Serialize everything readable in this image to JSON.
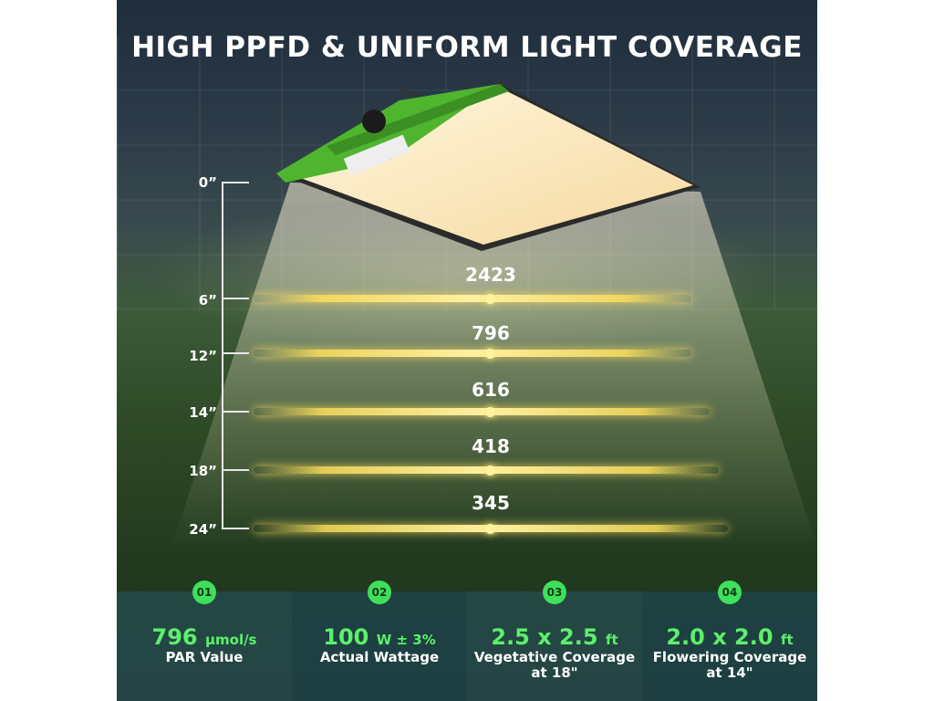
{
  "title": "HIGH PPFD & UNIFORM LIGHT COVERAGE",
  "colors": {
    "accent": "#5cf06a",
    "badge": "#3ee05a",
    "glow": "#fff0a0"
  },
  "heights": [
    "0”",
    "6”",
    "12”",
    "14”",
    "18”",
    "24”"
  ],
  "ppfd_values": [
    "2423",
    "796",
    "616",
    "418",
    "345"
  ],
  "stats": [
    {
      "num": "01",
      "value": "796",
      "unit": "μmol/s",
      "caption": "PAR Value"
    },
    {
      "num": "02",
      "value": "100",
      "unit": "W ± 3%",
      "caption": "Actual Wattage"
    },
    {
      "num": "03",
      "value": "2.5 x 2.5",
      "unit": "ft",
      "caption": "Vegetative Coverage",
      "caption2": "at 18\""
    },
    {
      "num": "04",
      "value": "2.0 x 2.0",
      "unit": "ft",
      "caption": "Flowering Coverage",
      "caption2": "at 14\""
    }
  ]
}
